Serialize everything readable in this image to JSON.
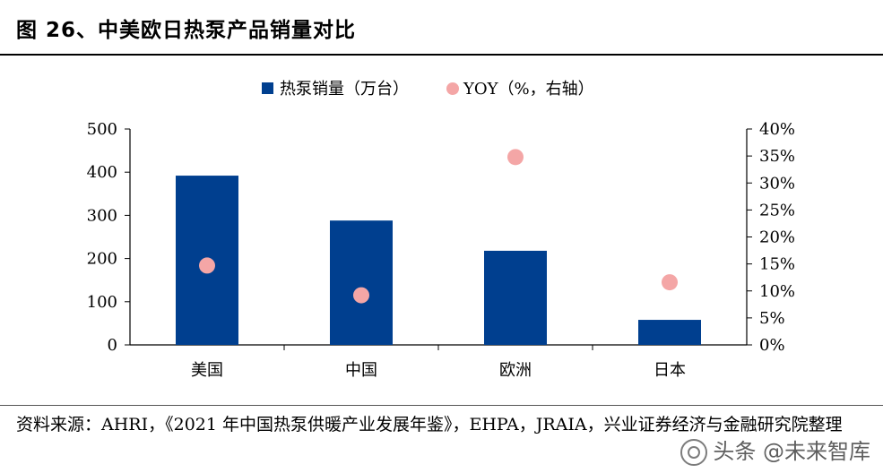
{
  "header": {
    "title": "图 26、中美欧日热泵产品销量对比"
  },
  "footer": {
    "source": "资料来源：AHRI，《2021 年中国热泵供暖产业发展年鉴》，EHPA，JRAIA，兴业证券经济与金融研究院整理",
    "watermark": "头条 @未来智库"
  },
  "chart_data": {
    "type": "bar",
    "categories": [
      "美国",
      "中国",
      "欧洲",
      "日本"
    ],
    "series": [
      {
        "name": "热泵销量（万台）",
        "kind": "bar",
        "axis": "left",
        "color": "#003F8F",
        "values": [
          392,
          288,
          218,
          58
        ]
      },
      {
        "name": "YOY（%，右轴）",
        "kind": "scatter",
        "axis": "right",
        "color": "#F4A6A6",
        "values": [
          14.7,
          9.2,
          34.8,
          11.6
        ]
      }
    ],
    "y_left": {
      "min": 0,
      "max": 500,
      "ticks": [
        "0",
        "100",
        "200",
        "300",
        "400",
        "500"
      ]
    },
    "y_right": {
      "min": 0,
      "max": 40,
      "ticks": [
        "0%",
        "5%",
        "10%",
        "15%",
        "20%",
        "25%",
        "30%",
        "35%",
        "40%"
      ]
    },
    "legend_position": "top-center",
    "grid": false
  }
}
